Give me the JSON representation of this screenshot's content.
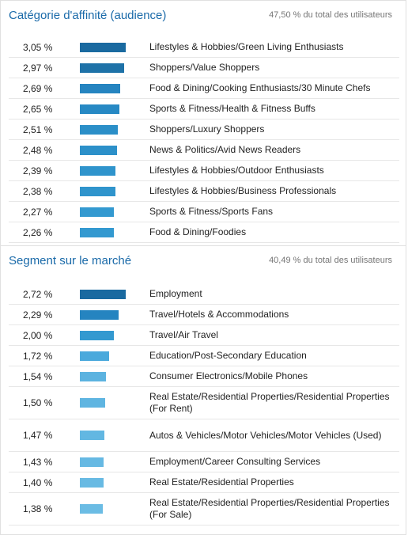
{
  "panels": [
    {
      "title": "Catégorie d'affinité (audience)",
      "summary": "47,50 % du total des utilisateurs",
      "rows": [
        {
          "pct": "3,05 %",
          "value": 3.05,
          "color": "#1a6aa0",
          "label": "Lifestyles & Hobbies/Green Living Enthusiasts"
        },
        {
          "pct": "2,97 %",
          "value": 2.97,
          "color": "#1e72a8",
          "label": "Shoppers/Value Shoppers"
        },
        {
          "pct": "2,69 %",
          "value": 2.69,
          "color": "#2584c0",
          "label": "Food & Dining/Cooking Enthusiasts/30 Minute Chefs"
        },
        {
          "pct": "2,65 %",
          "value": 2.65,
          "color": "#2789c4",
          "label": "Sports & Fitness/Health & Fitness Buffs"
        },
        {
          "pct": "2,51 %",
          "value": 2.51,
          "color": "#2b8fc8",
          "label": "Shoppers/Luxury Shoppers"
        },
        {
          "pct": "2,48 %",
          "value": 2.48,
          "color": "#2c90c9",
          "label": "News & Politics/Avid News Readers"
        },
        {
          "pct": "2,39 %",
          "value": 2.39,
          "color": "#2f94cc",
          "label": "Lifestyles & Hobbies/Outdoor Enthusiasts"
        },
        {
          "pct": "2,38 %",
          "value": 2.38,
          "color": "#2f94cc",
          "label": "Lifestyles & Hobbies/Business Professionals"
        },
        {
          "pct": "2,27 %",
          "value": 2.27,
          "color": "#3399d0",
          "label": "Sports & Fitness/Sports Fans"
        },
        {
          "pct": "2,26 %",
          "value": 2.26,
          "color": "#3399d0",
          "label": "Food & Dining/Foodies"
        }
      ]
    },
    {
      "title": "Segment sur le marché",
      "summary": "40,49 % du total des utilisateurs",
      "rows": [
        {
          "pct": "2,72 %",
          "value": 2.72,
          "color": "#1a6aa0",
          "label": "Employment"
        },
        {
          "pct": "2,29 %",
          "value": 2.29,
          "color": "#2584c0",
          "label": "Travel/Hotels & Accommodations"
        },
        {
          "pct": "2,00 %",
          "value": 2.0,
          "color": "#3399d0",
          "label": "Travel/Air Travel"
        },
        {
          "pct": "1,72 %",
          "value": 1.72,
          "color": "#4aa9dc",
          "label": "Education/Post-Secondary Education"
        },
        {
          "pct": "1,54 %",
          "value": 1.54,
          "color": "#5cb3e0",
          "label": "Consumer Electronics/Mobile Phones"
        },
        {
          "pct": "1,50 %",
          "value": 1.5,
          "color": "#5fb5e1",
          "label": "Real Estate/Residential Properties/Residential Properties (For Rent)",
          "tall": true
        },
        {
          "pct": "1,47 %",
          "value": 1.47,
          "color": "#62b7e2",
          "label": "Autos & Vehicles/Motor Vehicles/Motor Vehicles (Used)",
          "tall": true
        },
        {
          "pct": "1,43 %",
          "value": 1.43,
          "color": "#66b9e3",
          "label": "Employment/Career Consulting Services"
        },
        {
          "pct": "1,40 %",
          "value": 1.4,
          "color": "#68bae3",
          "label": "Real Estate/Residential Properties"
        },
        {
          "pct": "1,38 %",
          "value": 1.38,
          "color": "#6bbce4",
          "label": "Real Estate/Residential Properties/Residential Properties (For Sale)",
          "tall": true
        }
      ]
    }
  ]
}
